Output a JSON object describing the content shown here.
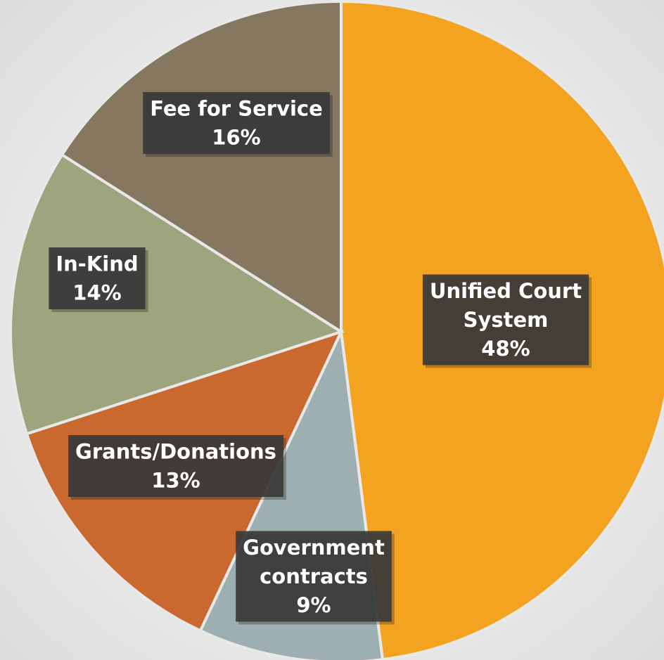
{
  "chart_data": {
    "type": "pie",
    "title": "",
    "start_angle_deg": 0,
    "direction": "clockwise",
    "slices": [
      {
        "label_lines": [
          "Unified Court",
          "System"
        ],
        "percent_text": "48%",
        "value": 48,
        "color": "#F4A321"
      },
      {
        "label_lines": [
          "Government",
          "contracts"
        ],
        "percent_text": "9%",
        "value": 9,
        "color": "#9EAFB2"
      },
      {
        "label_lines": [
          "Grants/Donations"
        ],
        "percent_text": "13%",
        "value": 13,
        "color": "#C9692F"
      },
      {
        "label_lines": [
          "In-Kind"
        ],
        "percent_text": "14%",
        "value": 14,
        "color": "#9EA47E"
      },
      {
        "label_lines": [
          "Fee for Service"
        ],
        "percent_text": "16%",
        "value": 16,
        "color": "#857760"
      }
    ]
  }
}
